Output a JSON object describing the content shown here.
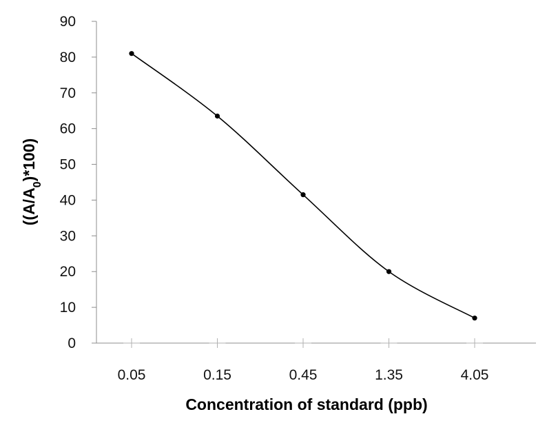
{
  "chart_data": {
    "type": "line",
    "title": "",
    "xlabel": "Concentration of standard (ppb)",
    "ylabel_parts": {
      "prefix": "((A/A",
      "sub": "0",
      "suffix": ")*100)"
    },
    "categories": [
      "0.05",
      "0.15",
      "0.45",
      "1.35",
      "4.05"
    ],
    "series": [
      {
        "values": [
          81,
          63.5,
          41.5,
          20,
          7
        ]
      }
    ],
    "ylim": [
      0,
      90
    ],
    "yticks": [
      0,
      10,
      20,
      30,
      40,
      50,
      60,
      70,
      80,
      90
    ],
    "grid": false,
    "smooth": true,
    "colors": {
      "line": "#000000",
      "axis": "#8c8c8c"
    }
  }
}
